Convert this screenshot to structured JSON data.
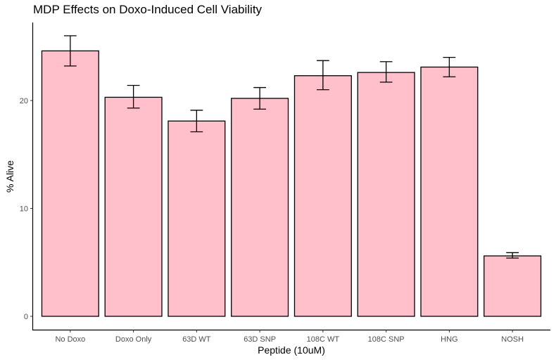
{
  "chart_data": {
    "type": "bar",
    "title": "MDP Effects on Doxo-Induced Cell Viability",
    "xlabel": "Peptide (10uM)",
    "ylabel": "% Alive",
    "categories": [
      "No Doxo",
      "Doxo Only",
      "63D WT",
      "63D SNP",
      "108C WT",
      "108C SNP",
      "HNG",
      "NOSH"
    ],
    "values": [
      24.6,
      20.3,
      18.1,
      20.2,
      22.3,
      22.6,
      23.1,
      5.6
    ],
    "error_low": [
      23.2,
      19.3,
      17.1,
      19.2,
      21.0,
      21.7,
      22.2,
      5.4
    ],
    "error_high": [
      26.0,
      21.4,
      19.1,
      21.2,
      23.7,
      23.6,
      24.0,
      5.9
    ],
    "ylim": [
      0,
      27.3
    ],
    "yticks": [
      0,
      10,
      20
    ],
    "grid": false,
    "legend": "none",
    "bar_fill": "#ffc0cb",
    "bar_stroke": "#000000"
  }
}
